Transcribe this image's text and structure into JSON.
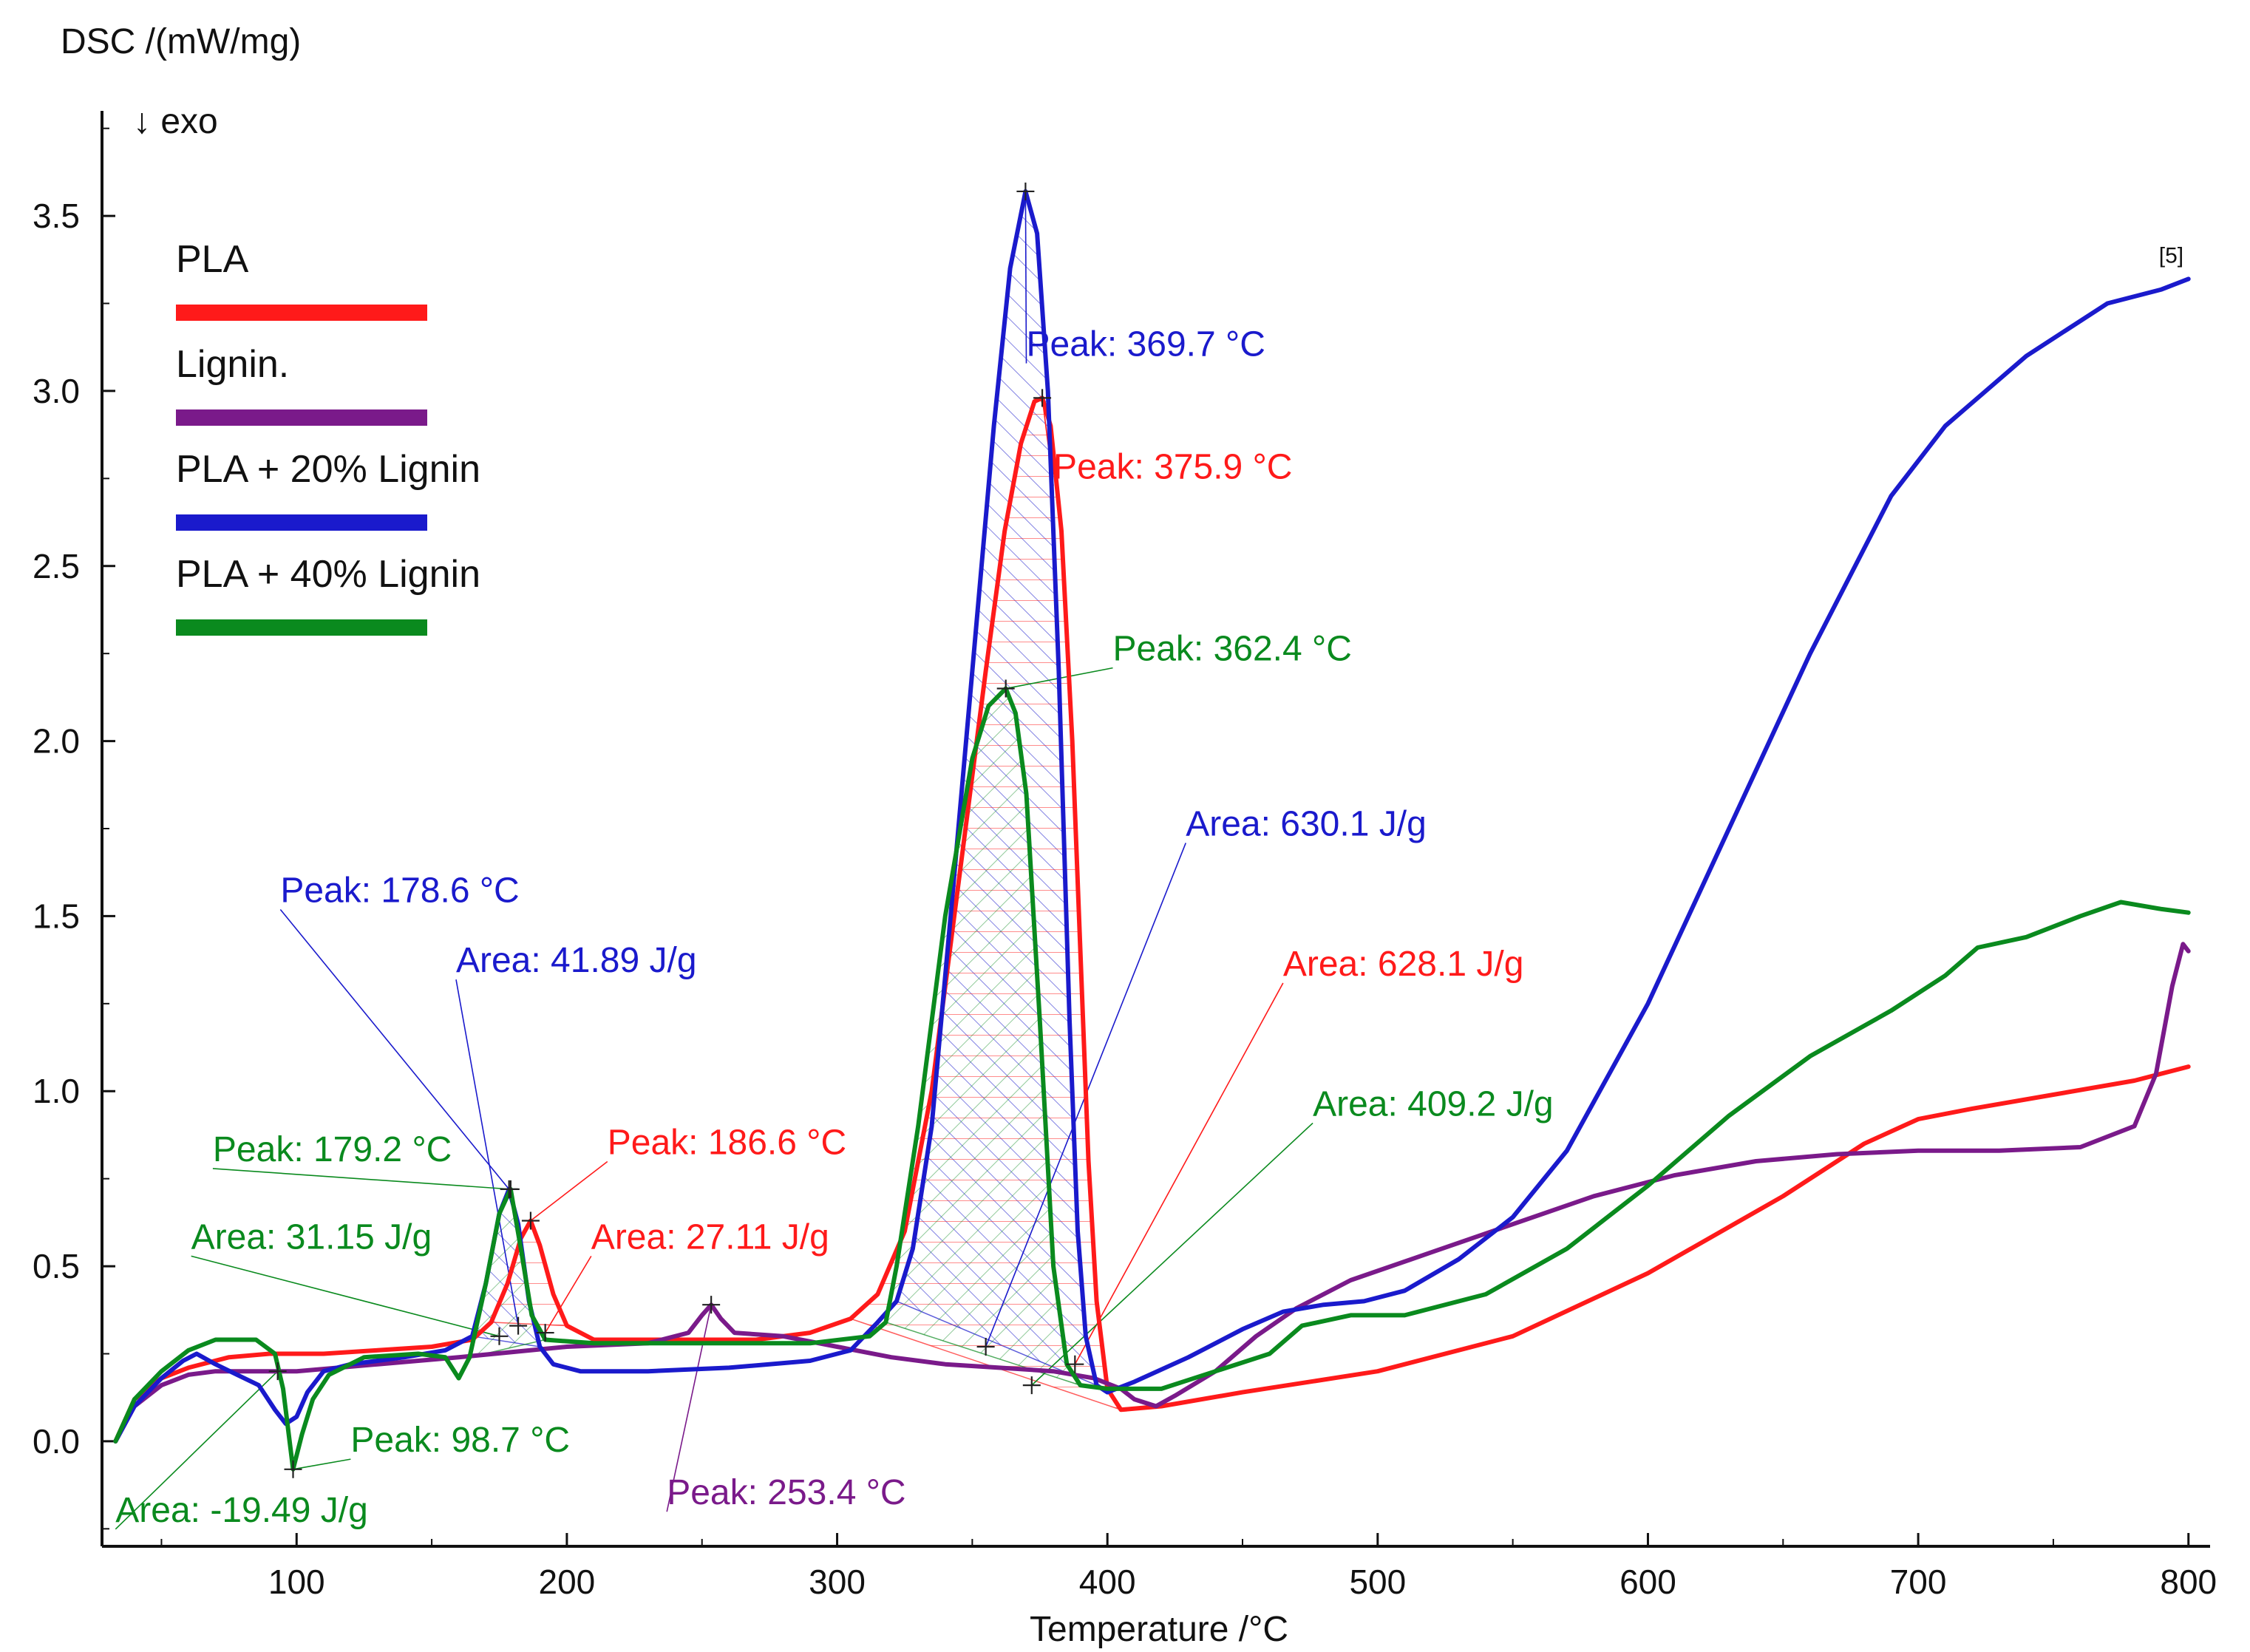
{
  "chart_data": {
    "type": "line",
    "ylabel": "DSC /(mW/mg)",
    "ylabel_direction": "↓ exo",
    "xlabel": "Temperature /°C",
    "xlim": [
      28,
      808
    ],
    "ylim": [
      -0.3,
      3.8
    ],
    "x_ticks": [
      100,
      200,
      300,
      400,
      500,
      600,
      700,
      800
    ],
    "y_ticks": [
      0.0,
      0.5,
      1.0,
      1.5,
      2.0,
      2.5,
      3.0,
      3.5
    ],
    "y_tick_labels": [
      "0.0",
      "0.5",
      "1.0",
      "1.5",
      "2.0",
      "2.5",
      "3.0",
      "3.5"
    ],
    "curve_marker": "[5]",
    "legend_position": "top-left",
    "series": [
      {
        "name": "PLA",
        "color": "#ff1a1a",
        "points": [
          [
            33,
            0.0
          ],
          [
            40,
            0.12
          ],
          [
            50,
            0.18
          ],
          [
            60,
            0.21
          ],
          [
            75,
            0.24
          ],
          [
            90,
            0.25
          ],
          [
            110,
            0.25
          ],
          [
            130,
            0.26
          ],
          [
            150,
            0.27
          ],
          [
            165,
            0.29
          ],
          [
            172,
            0.34
          ],
          [
            178,
            0.45
          ],
          [
            183,
            0.58
          ],
          [
            186.6,
            0.63
          ],
          [
            190,
            0.56
          ],
          [
            195,
            0.42
          ],
          [
            200,
            0.33
          ],
          [
            210,
            0.29
          ],
          [
            240,
            0.29
          ],
          [
            270,
            0.29
          ],
          [
            290,
            0.31
          ],
          [
            305,
            0.35
          ],
          [
            315,
            0.42
          ],
          [
            325,
            0.6
          ],
          [
            335,
            1.0
          ],
          [
            345,
            1.6
          ],
          [
            355,
            2.2
          ],
          [
            362,
            2.6
          ],
          [
            368,
            2.85
          ],
          [
            373,
            2.97
          ],
          [
            375.9,
            2.98
          ],
          [
            379,
            2.9
          ],
          [
            383,
            2.6
          ],
          [
            387,
            2.0
          ],
          [
            390,
            1.4
          ],
          [
            393,
            0.8
          ],
          [
            396,
            0.4
          ],
          [
            400,
            0.15
          ],
          [
            405,
            0.09
          ],
          [
            420,
            0.1
          ],
          [
            450,
            0.14
          ],
          [
            500,
            0.2
          ],
          [
            550,
            0.3
          ],
          [
            600,
            0.48
          ],
          [
            650,
            0.7
          ],
          [
            680,
            0.85
          ],
          [
            700,
            0.92
          ],
          [
            720,
            0.95
          ],
          [
            750,
            0.99
          ],
          [
            780,
            1.03
          ],
          [
            800,
            1.07
          ]
        ]
      },
      {
        "name": "Lignin.",
        "color": "#7a1a8a",
        "points": [
          [
            33,
            0.0
          ],
          [
            40,
            0.1
          ],
          [
            50,
            0.16
          ],
          [
            60,
            0.19
          ],
          [
            70,
            0.2
          ],
          [
            100,
            0.2
          ],
          [
            130,
            0.22
          ],
          [
            160,
            0.24
          ],
          [
            200,
            0.27
          ],
          [
            230,
            0.28
          ],
          [
            245,
            0.31
          ],
          [
            250,
            0.36
          ],
          [
            253.4,
            0.39
          ],
          [
            257,
            0.35
          ],
          [
            262,
            0.31
          ],
          [
            280,
            0.3
          ],
          [
            300,
            0.27
          ],
          [
            320,
            0.24
          ],
          [
            340,
            0.22
          ],
          [
            360,
            0.21
          ],
          [
            380,
            0.2
          ],
          [
            395,
            0.18
          ],
          [
            405,
            0.15
          ],
          [
            410,
            0.12
          ],
          [
            418,
            0.1
          ],
          [
            425,
            0.13
          ],
          [
            440,
            0.2
          ],
          [
            455,
            0.3
          ],
          [
            470,
            0.38
          ],
          [
            490,
            0.46
          ],
          [
            520,
            0.54
          ],
          [
            550,
            0.62
          ],
          [
            580,
            0.7
          ],
          [
            610,
            0.76
          ],
          [
            640,
            0.8
          ],
          [
            670,
            0.82
          ],
          [
            700,
            0.83
          ],
          [
            730,
            0.83
          ],
          [
            760,
            0.84
          ],
          [
            780,
            0.9
          ],
          [
            788,
            1.05
          ],
          [
            794,
            1.3
          ],
          [
            798,
            1.42
          ],
          [
            800,
            1.4
          ]
        ]
      },
      {
        "name": "PLA + 20% Lignin",
        "color": "#1a1acc",
        "points": [
          [
            33,
            0.0
          ],
          [
            40,
            0.1
          ],
          [
            50,
            0.18
          ],
          [
            58,
            0.23
          ],
          [
            63,
            0.25
          ],
          [
            70,
            0.22
          ],
          [
            78,
            0.19
          ],
          [
            86,
            0.16
          ],
          [
            92,
            0.09
          ],
          [
            96,
            0.05
          ],
          [
            100,
            0.07
          ],
          [
            104,
            0.14
          ],
          [
            110,
            0.2
          ],
          [
            120,
            0.22
          ],
          [
            140,
            0.24
          ],
          [
            155,
            0.26
          ],
          [
            165,
            0.3
          ],
          [
            170,
            0.45
          ],
          [
            175,
            0.65
          ],
          [
            178.6,
            0.72
          ],
          [
            182,
            0.62
          ],
          [
            186,
            0.4
          ],
          [
            190,
            0.27
          ],
          [
            195,
            0.22
          ],
          [
            205,
            0.2
          ],
          [
            230,
            0.2
          ],
          [
            260,
            0.21
          ],
          [
            290,
            0.23
          ],
          [
            305,
            0.26
          ],
          [
            315,
            0.34
          ],
          [
            322,
            0.4
          ],
          [
            328,
            0.55
          ],
          [
            335,
            0.9
          ],
          [
            342,
            1.5
          ],
          [
            350,
            2.2
          ],
          [
            358,
            2.9
          ],
          [
            364,
            3.35
          ],
          [
            369.7,
            3.57
          ],
          [
            374,
            3.45
          ],
          [
            378,
            3.0
          ],
          [
            382,
            2.2
          ],
          [
            386,
            1.2
          ],
          [
            389,
            0.6
          ],
          [
            392,
            0.3
          ],
          [
            396,
            0.16
          ],
          [
            400,
            0.14
          ],
          [
            410,
            0.17
          ],
          [
            430,
            0.24
          ],
          [
            450,
            0.32
          ],
          [
            465,
            0.37
          ],
          [
            480,
            0.39
          ],
          [
            495,
            0.4
          ],
          [
            510,
            0.43
          ],
          [
            530,
            0.52
          ],
          [
            550,
            0.64
          ],
          [
            570,
            0.83
          ],
          [
            600,
            1.25
          ],
          [
            630,
            1.75
          ],
          [
            660,
            2.25
          ],
          [
            690,
            2.7
          ],
          [
            710,
            2.9
          ],
          [
            740,
            3.1
          ],
          [
            770,
            3.25
          ],
          [
            790,
            3.29
          ],
          [
            800,
            3.32
          ]
        ]
      },
      {
        "name": "PLA + 40% Lignin",
        "color": "#0a8a1e",
        "points": [
          [
            33,
            0.0
          ],
          [
            40,
            0.12
          ],
          [
            50,
            0.2
          ],
          [
            60,
            0.26
          ],
          [
            70,
            0.29
          ],
          [
            85,
            0.29
          ],
          [
            92,
            0.25
          ],
          [
            95,
            0.15
          ],
          [
            98.7,
            -0.08
          ],
          [
            102,
            0.02
          ],
          [
            106,
            0.12
          ],
          [
            112,
            0.19
          ],
          [
            125,
            0.24
          ],
          [
            145,
            0.25
          ],
          [
            155,
            0.24
          ],
          [
            160,
            0.18
          ],
          [
            164,
            0.24
          ],
          [
            170,
            0.45
          ],
          [
            175,
            0.65
          ],
          [
            179.2,
            0.72
          ],
          [
            183,
            0.55
          ],
          [
            187,
            0.36
          ],
          [
            192,
            0.29
          ],
          [
            210,
            0.28
          ],
          [
            250,
            0.28
          ],
          [
            290,
            0.28
          ],
          [
            312,
            0.3
          ],
          [
            318,
            0.34
          ],
          [
            322,
            0.5
          ],
          [
            330,
            0.9
          ],
          [
            340,
            1.5
          ],
          [
            350,
            1.95
          ],
          [
            356,
            2.1
          ],
          [
            362.4,
            2.15
          ],
          [
            366,
            2.08
          ],
          [
            370,
            1.85
          ],
          [
            375,
            1.2
          ],
          [
            380,
            0.5
          ],
          [
            385,
            0.22
          ],
          [
            390,
            0.16
          ],
          [
            400,
            0.15
          ],
          [
            420,
            0.15
          ],
          [
            440,
            0.2
          ],
          [
            460,
            0.25
          ],
          [
            472,
            0.33
          ],
          [
            490,
            0.36
          ],
          [
            510,
            0.36
          ],
          [
            540,
            0.42
          ],
          [
            570,
            0.55
          ],
          [
            600,
            0.73
          ],
          [
            630,
            0.93
          ],
          [
            660,
            1.1
          ],
          [
            690,
            1.23
          ],
          [
            710,
            1.33
          ],
          [
            722,
            1.41
          ],
          [
            740,
            1.44
          ],
          [
            760,
            1.5
          ],
          [
            775,
            1.54
          ],
          [
            790,
            1.52
          ],
          [
            800,
            1.51
          ]
        ]
      }
    ],
    "annotations": [
      {
        "series": "PLA + 20% Lignin",
        "text": "Peak: 369.7 °C",
        "x": 369.7,
        "y": 3.57,
        "label_x": 370,
        "label_y": 3.1
      },
      {
        "series": "PLA",
        "text": "Peak: 375.9 °C",
        "x": 375.9,
        "y": 2.98,
        "label_x": 380,
        "label_y": 2.75
      },
      {
        "series": "PLA + 40% Lignin",
        "text": "Peak: 362.4 °C",
        "x": 362.4,
        "y": 2.15,
        "label_x": 402,
        "label_y": 2.23
      },
      {
        "series": "PLA + 20% Lignin",
        "text": "Area: 630.1 J/g",
        "x": 355,
        "y": 0.27,
        "label_x": 429,
        "label_y": 1.73
      },
      {
        "series": "PLA",
        "text": "Area: 628.1 J/g",
        "x": 388,
        "y": 0.22,
        "label_x": 465,
        "label_y": 1.33
      },
      {
        "series": "PLA + 40% Lignin",
        "text": "Area: 409.2 J/g",
        "x": 372,
        "y": 0.16,
        "label_x": 476,
        "label_y": 0.93
      },
      {
        "series": "PLA + 20% Lignin",
        "text": "Peak: 178.6 °C",
        "x": 178.6,
        "y": 0.72,
        "label_x": 94,
        "label_y": 1.54
      },
      {
        "series": "PLA + 20% Lignin",
        "text": "Area: 41.89 J/g",
        "x": 182,
        "y": 0.33,
        "label_x": 159,
        "label_y": 1.34
      },
      {
        "series": "PLA",
        "text": "Peak: 186.6 °C",
        "x": 186.6,
        "y": 0.63,
        "label_x": 215,
        "label_y": 0.82
      },
      {
        "series": "PLA + 40% Lignin",
        "text": "Peak: 179.2 °C",
        "x": 179.2,
        "y": 0.72,
        "label_x": 69,
        "label_y": 0.8
      },
      {
        "series": "PLA",
        "text": "Area: 27.11 J/g",
        "x": 192,
        "y": 0.31,
        "label_x": 209,
        "label_y": 0.55
      },
      {
        "series": "PLA + 40% Lignin",
        "text": "Area: 31.15 J/g",
        "x": 175,
        "y": 0.3,
        "label_x": 61,
        "label_y": 0.55
      },
      {
        "series": "PLA + 40% Lignin",
        "text": "Peak: 98.7 °C",
        "x": 98.7,
        "y": -0.08,
        "label_x": 120,
        "label_y": -0.03
      },
      {
        "series": "PLA + 40% Lignin",
        "text": "Area: -19.49 J/g",
        "x": 93,
        "y": 0.2,
        "label_x": 33,
        "label_y": -0.23
      },
      {
        "series": "Lignin.",
        "text": "Peak: 253.4 °C",
        "x": 253.4,
        "y": 0.39,
        "label_x": 237,
        "label_y": -0.18
      }
    ]
  }
}
